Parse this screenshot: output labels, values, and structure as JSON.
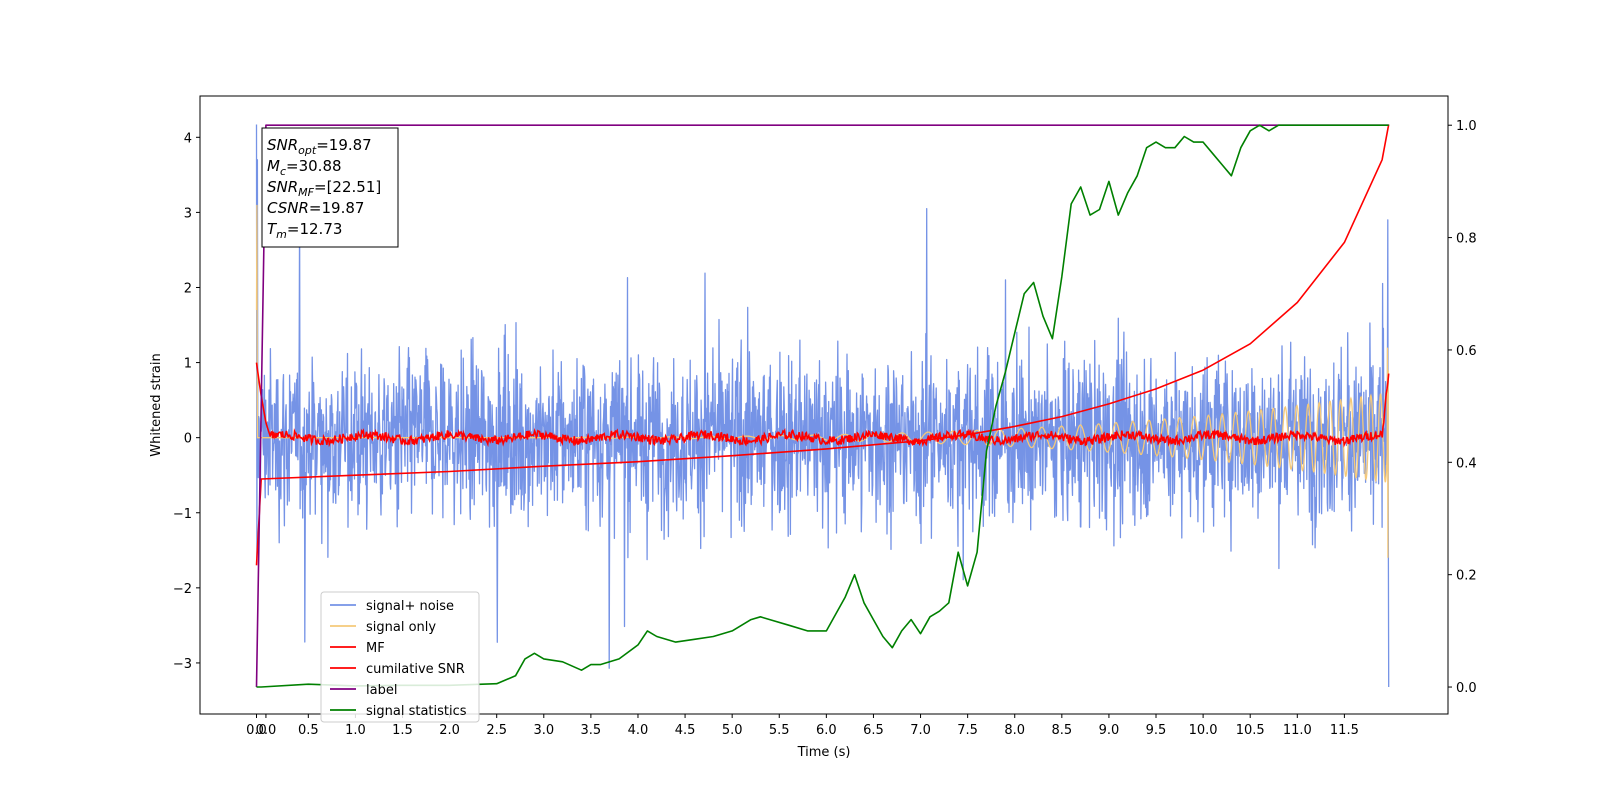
{
  "chart_data": {
    "type": "line",
    "xlabel": "Time (s)",
    "ylabel": "Whitened strain",
    "ylabel_right": "",
    "xlim": [
      -0.65,
      12.6
    ],
    "ylim": [
      -3.68,
      4.55
    ],
    "ylim_right": [
      -0.048,
      1.052
    ],
    "x_ticks": [
      "0.0",
      "0.0",
      "0.5",
      "1.0",
      "1.5",
      "2.0",
      "2.5",
      "3.0",
      "3.5",
      "4.0",
      "4.5",
      "5.0",
      "5.5",
      "6.0",
      "6.5",
      "7.0",
      "7.5",
      "8.0",
      "8.5",
      "9.0",
      "9.5",
      "10.0",
      "10.5",
      "11.0",
      "11.5"
    ],
    "x_tick_values": [
      -0.05,
      0.05,
      0.5,
      1.0,
      1.5,
      2.0,
      2.5,
      3.0,
      3.5,
      4.0,
      4.5,
      5.0,
      5.5,
      6.0,
      6.5,
      7.0,
      7.5,
      8.0,
      8.5,
      9.0,
      9.5,
      10.0,
      10.5,
      11.0,
      11.5
    ],
    "y_ticks": [
      -3,
      -2,
      -1,
      0,
      1,
      2,
      3,
      4
    ],
    "y_ticks_right": [
      "0.0",
      "0.2",
      "0.4",
      "0.6",
      "0.8",
      "1.0"
    ],
    "y_tick_values_right": [
      0.0,
      0.2,
      0.4,
      0.6,
      0.8,
      1.0
    ],
    "annotation": [
      {
        "sym": "SNR",
        "sub": "opt",
        "val": "=19.87"
      },
      {
        "sym": "M",
        "sub": "c",
        "val": "=30.88"
      },
      {
        "sym": "SNR",
        "sub": "MF",
        "val": "=[22.51]"
      },
      {
        "sym": "CSNR",
        "sub": "",
        "val": "=19.87"
      },
      {
        "sym": "T",
        "sub": "m",
        "val": "=12.73"
      }
    ],
    "legend_position": "lower-left",
    "grid": false,
    "series": [
      {
        "name": "signal+ noise",
        "color": "#7593e6",
        "axis": "left",
        "kind": "noise",
        "x_range": [
          -0.05,
          11.97
        ],
        "amplitude_envelope": "≈ ±0.9 typical, peaks to +4.17 / -3.32"
      },
      {
        "name": "signal only",
        "color": "#f5c97a",
        "axis": "left",
        "kind": "chirp",
        "x_range": [
          -0.05,
          11.97
        ],
        "amplitude_start": 0.0,
        "amplitude_end": 0.6
      },
      {
        "name": "MF",
        "color": "#ff0000",
        "axis": "left",
        "x": [
          -0.05,
          0.0,
          0.05,
          0.1,
          12.0
        ],
        "y": [
          1.0,
          0.55,
          0.2,
          0.0,
          0.0
        ],
        "note": "noisy around 0 (±0.08) from 0.1 s to 11.97 s, rising to 0.9 at end"
      },
      {
        "name": "cumilative SNR",
        "color": "#ff0000",
        "axis": "left",
        "x": [
          -0.05,
          0.0,
          1.0,
          2.0,
          3.0,
          4.0,
          5.0,
          6.0,
          7.0,
          7.5,
          8.0,
          8.5,
          9.0,
          9.5,
          10.0,
          10.5,
          11.0,
          11.5,
          11.9,
          11.97
        ],
        "y": [
          -1.7,
          -0.55,
          -0.5,
          -0.45,
          -0.38,
          -0.32,
          -0.24,
          -0.15,
          -0.04,
          0.04,
          0.15,
          0.28,
          0.45,
          0.65,
          0.9,
          1.25,
          1.8,
          2.6,
          3.7,
          4.17
        ]
      },
      {
        "name": "label",
        "color": "#800080",
        "axis": "right",
        "x": [
          -0.05,
          0.0,
          0.05,
          11.97
        ],
        "y": [
          0.0,
          0.5,
          1.0,
          1.0
        ]
      },
      {
        "name": "signal statistics",
        "color": "#008000",
        "axis": "right",
        "x": [
          -0.05,
          0.0,
          0.5,
          1.0,
          1.5,
          2.0,
          2.5,
          2.7,
          2.8,
          2.9,
          3.0,
          3.2,
          3.4,
          3.5,
          3.6,
          3.8,
          4.0,
          4.1,
          4.2,
          4.4,
          4.6,
          4.8,
          5.0,
          5.2,
          5.3,
          5.4,
          5.6,
          5.8,
          6.0,
          6.1,
          6.2,
          6.3,
          6.4,
          6.5,
          6.6,
          6.7,
          6.8,
          6.9,
          7.0,
          7.1,
          7.2,
          7.3,
          7.4,
          7.5,
          7.6,
          7.7,
          7.8,
          7.9,
          8.0,
          8.1,
          8.2,
          8.3,
          8.4,
          8.5,
          8.6,
          8.7,
          8.8,
          8.9,
          9.0,
          9.1,
          9.2,
          9.3,
          9.4,
          9.5,
          9.6,
          9.7,
          9.8,
          9.9,
          10.0,
          10.1,
          10.2,
          10.3,
          10.4,
          10.5,
          10.6,
          10.7,
          10.8,
          11.0,
          11.2,
          11.5,
          11.97
        ],
        "y": [
          0.0,
          0.0,
          0.005,
          0.002,
          0.003,
          0.003,
          0.006,
          0.02,
          0.05,
          0.06,
          0.05,
          0.045,
          0.03,
          0.04,
          0.04,
          0.05,
          0.075,
          0.1,
          0.09,
          0.08,
          0.085,
          0.09,
          0.1,
          0.12,
          0.125,
          0.12,
          0.11,
          0.1,
          0.1,
          0.13,
          0.16,
          0.2,
          0.15,
          0.12,
          0.09,
          0.07,
          0.1,
          0.12,
          0.095,
          0.125,
          0.135,
          0.15,
          0.24,
          0.18,
          0.24,
          0.42,
          0.5,
          0.56,
          0.63,
          0.7,
          0.72,
          0.66,
          0.62,
          0.73,
          0.86,
          0.89,
          0.84,
          0.85,
          0.9,
          0.84,
          0.88,
          0.91,
          0.96,
          0.97,
          0.96,
          0.96,
          0.98,
          0.97,
          0.97,
          0.95,
          0.93,
          0.91,
          0.96,
          0.99,
          1.0,
          0.99,
          1.0,
          1.0,
          1.0,
          1.0,
          1.0
        ]
      }
    ]
  }
}
